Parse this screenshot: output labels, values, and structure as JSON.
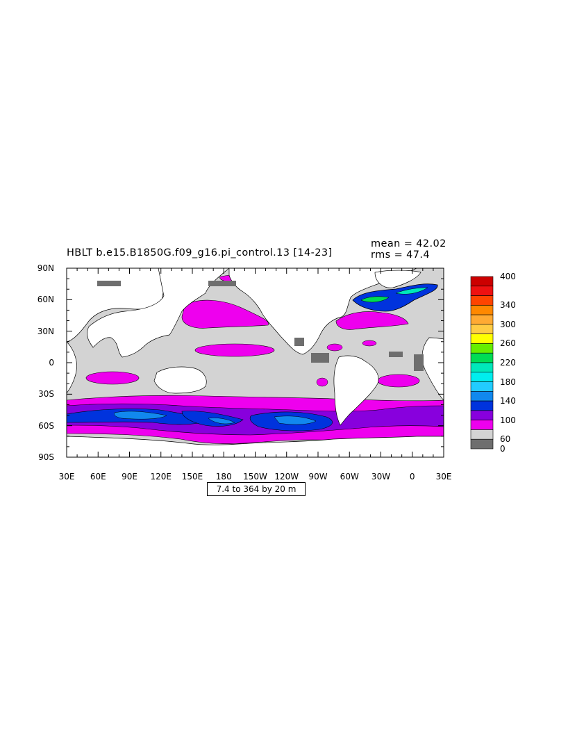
{
  "title": "HBLT b.e15.B1850G.f09_g16.pi_control.13 [14-23]",
  "stats": {
    "mean": "mean = 42.02",
    "rms": "rms = 47.4"
  },
  "contour_info": "7.4 to 364 by 20 m",
  "axes": {
    "lat_labels": [
      "90N",
      "60N",
      "30N",
      "0",
      "30S",
      "60S",
      "90S"
    ],
    "lon_labels": [
      "30E",
      "60E",
      "90E",
      "120E",
      "150E",
      "180",
      "150W",
      "120W",
      "90W",
      "60W",
      "30W",
      "0",
      "30E"
    ]
  },
  "colorbar": {
    "labels": [
      "400",
      "340",
      "300",
      "260",
      "220",
      "180",
      "140",
      "100",
      "60",
      "0"
    ],
    "colors": [
      "#cc0000",
      "#ee1111",
      "#ff4400",
      "#ff8800",
      "#ffaa33",
      "#ffcc44",
      "#ffff00",
      "#66ee00",
      "#00dd55",
      "#00e8bb",
      "#00eeee",
      "#22ccff",
      "#1188ee",
      "#0033dd",
      "#8800dd",
      "#ee00ee",
      "#d3d3d3",
      "#6e6e6e"
    ]
  },
  "colors": {
    "land": "#ffffff",
    "shallow": "#d3d3d3",
    "mid": "#ee00ee",
    "deep1": "#8800dd",
    "deep2": "#0033dd",
    "deep3": "#1188ee",
    "lowest": "#6e6e6e"
  }
}
